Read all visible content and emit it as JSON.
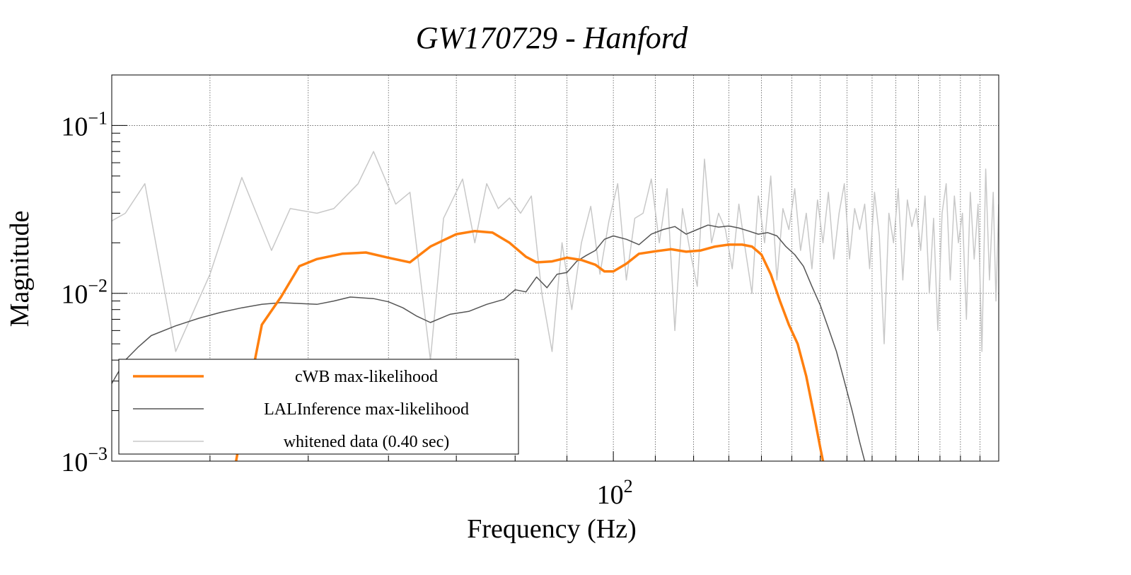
{
  "chart_data": {
    "type": "line",
    "title": "GW170729 - Hanford",
    "xlabel": "Frequency (Hz)",
    "ylabel": "Magnitude",
    "xscale": "log",
    "yscale": "log",
    "xlim": [
      32,
      240
    ],
    "ylim": [
      0.001,
      0.2
    ],
    "grid": true,
    "legend_position": "bottom-left",
    "x_tick_labels": [
      {
        "value": 100,
        "base": "10",
        "exp": "2"
      }
    ],
    "y_tick_labels": [
      {
        "value": 0.1,
        "base": "10",
        "exp": "−1"
      },
      {
        "value": 0.01,
        "base": "10",
        "exp": "−2"
      },
      {
        "value": 0.001,
        "base": "10",
        "exp": "−3"
      }
    ],
    "series": [
      {
        "name": "cWB max-likelihood",
        "color": "#ff7f0e",
        "points": [
          [
            42,
            0.0007
          ],
          [
            43.5,
            0.0023
          ],
          [
            45,
            0.0065
          ],
          [
            47,
            0.0095
          ],
          [
            49,
            0.0145
          ],
          [
            51,
            0.016
          ],
          [
            54,
            0.0172
          ],
          [
            57,
            0.0175
          ],
          [
            60,
            0.0163
          ],
          [
            63,
            0.0153
          ],
          [
            66,
            0.019
          ],
          [
            70,
            0.0225
          ],
          [
            73,
            0.0235
          ],
          [
            76,
            0.023
          ],
          [
            79,
            0.02
          ],
          [
            82,
            0.0165
          ],
          [
            84,
            0.0153
          ],
          [
            87,
            0.0155
          ],
          [
            90,
            0.0163
          ],
          [
            93,
            0.0158
          ],
          [
            96,
            0.0148
          ],
          [
            98,
            0.0135
          ],
          [
            100,
            0.0135
          ],
          [
            103,
            0.015
          ],
          [
            106,
            0.0172
          ],
          [
            110,
            0.0178
          ],
          [
            114,
            0.0183
          ],
          [
            118,
            0.0177
          ],
          [
            122,
            0.018
          ],
          [
            126,
            0.019
          ],
          [
            130,
            0.0195
          ],
          [
            134,
            0.0195
          ],
          [
            137,
            0.019
          ],
          [
            140,
            0.017
          ],
          [
            143,
            0.013
          ],
          [
            146,
            0.009
          ],
          [
            149,
            0.0065
          ],
          [
            152,
            0.005
          ],
          [
            155,
            0.0032
          ],
          [
            158,
            0.0018
          ],
          [
            160,
            0.0012
          ],
          [
            161,
            0.001
          ]
        ]
      },
      {
        "name": "LALInference max-likelihood",
        "color": "#555555",
        "points": [
          [
            32,
            0.0029
          ],
          [
            33,
            0.004
          ],
          [
            34,
            0.0048
          ],
          [
            35,
            0.0056
          ],
          [
            37,
            0.0064
          ],
          [
            39,
            0.0071
          ],
          [
            41,
            0.0077
          ],
          [
            43,
            0.0082
          ],
          [
            45,
            0.0086
          ],
          [
            47,
            0.0088
          ],
          [
            49,
            0.0087
          ],
          [
            51,
            0.0086
          ],
          [
            53,
            0.009
          ],
          [
            55,
            0.0095
          ],
          [
            58,
            0.0093
          ],
          [
            60,
            0.0089
          ],
          [
            62,
            0.0082
          ],
          [
            64,
            0.0073
          ],
          [
            66,
            0.0067
          ],
          [
            69,
            0.0075
          ],
          [
            72,
            0.0078
          ],
          [
            75,
            0.0086
          ],
          [
            78,
            0.0092
          ],
          [
            80,
            0.0105
          ],
          [
            82,
            0.0102
          ],
          [
            84,
            0.0125
          ],
          [
            86,
            0.0108
          ],
          [
            88,
            0.013
          ],
          [
            90,
            0.0133
          ],
          [
            92,
            0.0155
          ],
          [
            94,
            0.0168
          ],
          [
            96,
            0.018
          ],
          [
            98,
            0.021
          ],
          [
            100,
            0.022
          ],
          [
            103,
            0.021
          ],
          [
            106,
            0.0195
          ],
          [
            109,
            0.0225
          ],
          [
            112,
            0.024
          ],
          [
            115,
            0.025
          ],
          [
            118,
            0.0225
          ],
          [
            121,
            0.024
          ],
          [
            124,
            0.0255
          ],
          [
            127,
            0.0248
          ],
          [
            130,
            0.0252
          ],
          [
            133,
            0.0245
          ],
          [
            136,
            0.0235
          ],
          [
            139,
            0.0225
          ],
          [
            142,
            0.023
          ],
          [
            145,
            0.022
          ],
          [
            148,
            0.019
          ],
          [
            151,
            0.017
          ],
          [
            154,
            0.0145
          ],
          [
            157,
            0.011
          ],
          [
            160,
            0.0085
          ],
          [
            163,
            0.0062
          ],
          [
            166,
            0.0045
          ],
          [
            169,
            0.003
          ],
          [
            172,
            0.002
          ],
          [
            175,
            0.0013
          ],
          [
            177,
            0.001
          ]
        ]
      },
      {
        "name": "whitened data (0.40 sec)",
        "color": "#c8c8c8",
        "points": [
          [
            32,
            0.027
          ],
          [
            33,
            0.03
          ],
          [
            34.5,
            0.045
          ],
          [
            37,
            0.0045
          ],
          [
            40,
            0.013
          ],
          [
            43,
            0.049
          ],
          [
            46,
            0.018
          ],
          [
            48,
            0.032
          ],
          [
            51,
            0.03
          ],
          [
            53,
            0.032
          ],
          [
            56,
            0.045
          ],
          [
            58,
            0.07
          ],
          [
            61,
            0.034
          ],
          [
            63,
            0.04
          ],
          [
            66,
            0.004
          ],
          [
            68,
            0.028
          ],
          [
            71,
            0.048
          ],
          [
            73,
            0.02
          ],
          [
            75,
            0.045
          ],
          [
            77,
            0.032
          ],
          [
            79,
            0.037
          ],
          [
            81,
            0.03
          ],
          [
            83,
            0.038
          ],
          [
            85,
            0.01
          ],
          [
            87,
            0.0045
          ],
          [
            89,
            0.02
          ],
          [
            91,
            0.008
          ],
          [
            93,
            0.02
          ],
          [
            95,
            0.033
          ],
          [
            97,
            0.013
          ],
          [
            99,
            0.027
          ],
          [
            101,
            0.045
          ],
          [
            103,
            0.012
          ],
          [
            105,
            0.028
          ],
          [
            107,
            0.03
          ],
          [
            109,
            0.048
          ],
          [
            111,
            0.02
          ],
          [
            113,
            0.042
          ],
          [
            115,
            0.006
          ],
          [
            117,
            0.032
          ],
          [
            119,
            0.018
          ],
          [
            121,
            0.011
          ],
          [
            123,
            0.063
          ],
          [
            125,
            0.02
          ],
          [
            127,
            0.03
          ],
          [
            129,
            0.024
          ],
          [
            131,
            0.014
          ],
          [
            133,
            0.034
          ],
          [
            135,
            0.018
          ],
          [
            137,
            0.01
          ],
          [
            139,
            0.038
          ],
          [
            141,
            0.02
          ],
          [
            143,
            0.05
          ],
          [
            145,
            0.012
          ],
          [
            147,
            0.032
          ],
          [
            149,
            0.024
          ],
          [
            151,
            0.042
          ],
          [
            153,
            0.018
          ],
          [
            155,
            0.03
          ],
          [
            157,
            0.014
          ],
          [
            159,
            0.036
          ],
          [
            161,
            0.02
          ],
          [
            163,
            0.04
          ],
          [
            165,
            0.016
          ],
          [
            167,
            0.03
          ],
          [
            169,
            0.045
          ],
          [
            171,
            0.016
          ],
          [
            173,
            0.032
          ],
          [
            175,
            0.024
          ],
          [
            177,
            0.034
          ],
          [
            179,
            0.014
          ],
          [
            181,
            0.04
          ],
          [
            183,
            0.022
          ],
          [
            185,
            0.005
          ],
          [
            187,
            0.03
          ],
          [
            189,
            0.02
          ],
          [
            191,
            0.042
          ],
          [
            193,
            0.012
          ],
          [
            195,
            0.036
          ],
          [
            197,
            0.025
          ],
          [
            199,
            0.032
          ],
          [
            201,
            0.018
          ],
          [
            203,
            0.038
          ],
          [
            205,
            0.01
          ],
          [
            207,
            0.028
          ],
          [
            209,
            0.006
          ],
          [
            211,
            0.03
          ],
          [
            213,
            0.045
          ],
          [
            215,
            0.012
          ],
          [
            217,
            0.038
          ],
          [
            219,
            0.02
          ],
          [
            221,
            0.03
          ],
          [
            223,
            0.007
          ],
          [
            225,
            0.04
          ],
          [
            227,
            0.016
          ],
          [
            229,
            0.034
          ],
          [
            231,
            0.0045
          ],
          [
            233,
            0.055
          ],
          [
            235,
            0.012
          ],
          [
            237,
            0.04
          ],
          [
            238.5,
            0.009
          ],
          [
            240,
            0.034
          ]
        ]
      }
    ]
  }
}
